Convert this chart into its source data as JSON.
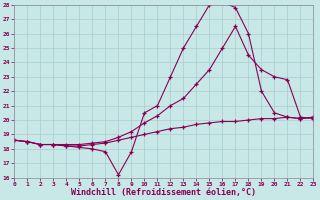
{
  "xlabel": "Windchill (Refroidissement éolien,°C)",
  "xlim": [
    0,
    23
  ],
  "ylim": [
    16,
    28
  ],
  "yticks": [
    16,
    17,
    18,
    19,
    20,
    21,
    22,
    23,
    24,
    25,
    26,
    27,
    28
  ],
  "xticks": [
    0,
    1,
    2,
    3,
    4,
    5,
    6,
    7,
    8,
    9,
    10,
    11,
    12,
    13,
    14,
    15,
    16,
    17,
    18,
    19,
    20,
    21,
    22,
    23
  ],
  "grid_color": "#aacccc",
  "bg_color": "#c8e8e8",
  "line_color": "#880055",
  "series": [
    {
      "x": [
        0,
        1,
        2,
        3,
        4,
        5,
        6,
        7,
        8,
        9,
        10,
        11,
        12,
        13,
        14,
        15,
        16,
        17,
        18,
        19,
        20,
        21,
        22,
        23
      ],
      "y": [
        18.6,
        18.5,
        18.3,
        18.3,
        18.2,
        18.1,
        18.0,
        17.8,
        16.2,
        17.8,
        20.5,
        21.0,
        23.0,
        25.0,
        26.5,
        28.0,
        28.2,
        27.8,
        26.0,
        22.0,
        20.5,
        20.2,
        20.1,
        20.2
      ]
    },
    {
      "x": [
        0,
        1,
        2,
        3,
        4,
        5,
        6,
        7,
        8,
        9,
        10,
        11,
        12,
        13,
        14,
        15,
        16,
        17,
        18,
        19,
        20,
        21,
        22,
        23
      ],
      "y": [
        18.6,
        18.5,
        18.3,
        18.3,
        18.3,
        18.3,
        18.4,
        18.5,
        18.8,
        19.2,
        19.8,
        20.3,
        21.0,
        21.5,
        22.5,
        23.5,
        25.0,
        26.5,
        24.5,
        23.5,
        23.0,
        22.8,
        20.2,
        20.1
      ]
    },
    {
      "x": [
        0,
        1,
        2,
        3,
        4,
        5,
        6,
        7,
        8,
        9,
        10,
        11,
        12,
        13,
        14,
        15,
        16,
        17,
        18,
        19,
        20,
        21,
        22,
        23
      ],
      "y": [
        18.6,
        18.5,
        18.3,
        18.3,
        18.2,
        18.2,
        18.3,
        18.4,
        18.6,
        18.8,
        19.0,
        19.2,
        19.4,
        19.5,
        19.7,
        19.8,
        19.9,
        19.9,
        20.0,
        20.1,
        20.1,
        20.2,
        20.1,
        20.2
      ]
    }
  ]
}
